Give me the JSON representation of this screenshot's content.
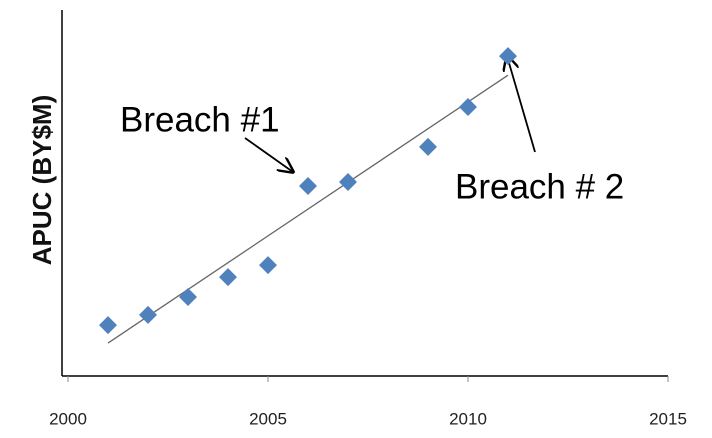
{
  "chart_data": {
    "type": "scatter",
    "ylabel": "APUC (BY$M)",
    "x": [
      2001,
      2002,
      2003,
      2004,
      2005,
      2006,
      2007,
      2009,
      2010,
      2011
    ],
    "values": [
      13.9,
      16.7,
      21.6,
      27.0,
      30.3,
      51.9,
      53.0,
      62.6,
      73.5,
      87.4
    ],
    "color": "#4f81bd",
    "trendline": {
      "x": [
        2001,
        2011
      ],
      "values": [
        9.0,
        82.2
      ],
      "color": "#666666"
    },
    "xlim": [
      2000,
      2015
    ],
    "xticks": [
      2000,
      2005,
      2010,
      2015
    ],
    "ylim": [
      0,
      100
    ],
    "annotations": [
      {
        "text": "Breach #1"
      },
      {
        "text": "Breach # 2"
      }
    ]
  }
}
